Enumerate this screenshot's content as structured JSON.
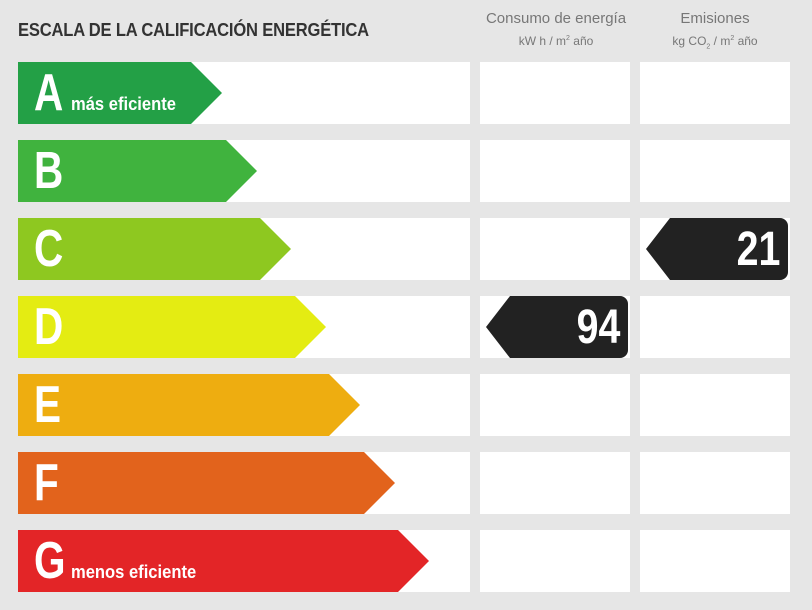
{
  "title": "ESCALA DE LA CALIFICACIÓN ENERGÉTICA",
  "columns": {
    "energy": {
      "label": "Consumo de energía",
      "unit_pre": "kW h / m",
      "unit_sup": "2",
      "unit_post": " año"
    },
    "emissions": {
      "label": "Emisiones",
      "unit_pre": "kg CO",
      "unit_sub": "2",
      "unit_mid": " / m",
      "unit_sup": "2",
      "unit_post": " año"
    }
  },
  "chart_data": {
    "type": "table",
    "title": "ESCALA DE LA CALIFICACIÓN ENERGÉTICA",
    "classes": [
      {
        "letter": "A",
        "label": "más eficiente",
        "color": "#23a046"
      },
      {
        "letter": "B",
        "label": "",
        "color": "#40b33e"
      },
      {
        "letter": "C",
        "label": "",
        "color": "#8ec820"
      },
      {
        "letter": "D",
        "label": "",
        "color": "#e4ec12"
      },
      {
        "letter": "E",
        "label": "",
        "color": "#eead10"
      },
      {
        "letter": "F",
        "label": "",
        "color": "#e2631c"
      },
      {
        "letter": "G",
        "label": "menos eficiente",
        "color": "#e32527"
      }
    ],
    "energy_rating": {
      "class": "D",
      "value": "94"
    },
    "emissions_rating": {
      "class": "C",
      "value": "21"
    }
  }
}
